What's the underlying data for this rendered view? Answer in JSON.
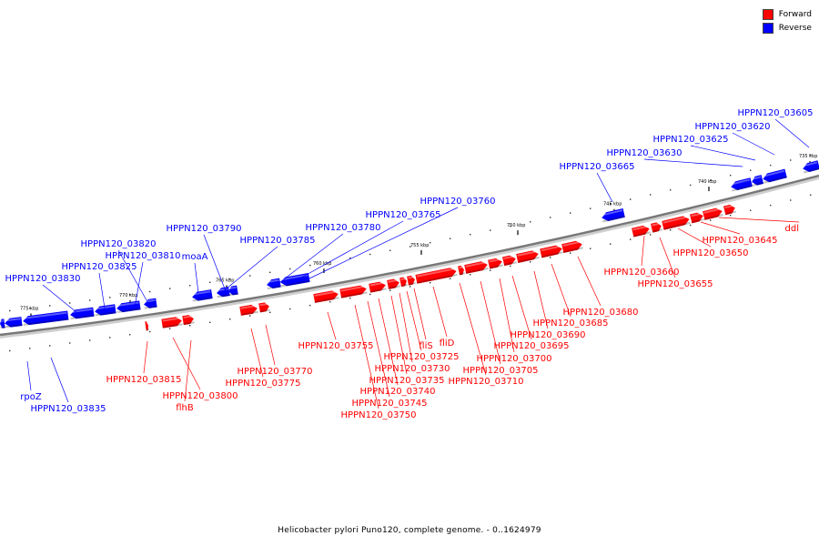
{
  "legend": {
    "forward_label": "Forward",
    "reverse_label": "Reverse",
    "forward_color": "#ff0000",
    "reverse_color": "#0000ff"
  },
  "caption": "Helicobacter pylori Puno120, complete genome. - 0..1624979",
  "ticks": [
    "735 kbp",
    "740 kbp",
    "745 kbp",
    "750 kbp",
    "755 kbp",
    "760 kbp",
    "765 kbp",
    "770 kbp",
    "775 kbp"
  ],
  "genes": {
    "reverse": [
      "HPPN120_03605",
      "HPPN120_03620",
      "HPPN120_03625",
      "HPPN120_03630",
      "HPPN120_03665",
      "HPPN120_03760",
      "HPPN120_03765",
      "HPPN120_03780",
      "HPPN120_03790",
      "HPPN120_03785",
      "HPPN120_03820",
      "HPPN120_03810",
      "moaA",
      "HPPN120_03825",
      "HPPN120_03830",
      "rpoZ",
      "HPPN120_03835"
    ],
    "forward": [
      "ddl",
      "HPPN120_03645",
      "HPPN120_03650",
      "HPPN120_03660",
      "HPPN120_03655",
      "HPPN120_03680",
      "HPPN120_03685",
      "HPPN120_03690",
      "HPPN120_03695",
      "HPPN120_03700",
      "HPPN120_03705",
      "HPPN120_03710",
      "fliD",
      "fliS",
      "HPPN120_03725",
      "HPPN120_03730",
      "HPPN120_03735",
      "HPPN120_03740",
      "HPPN120_03745",
      "HPPN120_03750",
      "HPPN120_03755",
      "HPPN120_03770",
      "HPPN120_03775",
      "HPPN120_03815",
      "HPPN120_03800",
      "flhB"
    ]
  }
}
